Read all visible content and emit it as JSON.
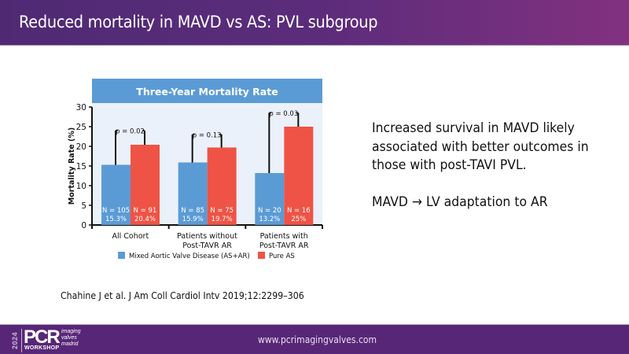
{
  "header": {
    "title": "Reduced mortality in MAVD vs AS: PVL subgroup"
  },
  "chart_data": {
    "type": "bar",
    "title": "Three-Year Mortality Rate",
    "xlabel": "",
    "ylabel": "Mortality Rate (%)",
    "ylim": [
      0,
      30
    ],
    "yticks": [
      0,
      5,
      10,
      15,
      20,
      25,
      30
    ],
    "grid": false,
    "legend_position": "bottom",
    "categories": [
      "All Cohort",
      "Patients without Post-TAVR AR",
      "Patients with Post-TAVR AR"
    ],
    "category_lines": [
      [
        "All Cohort"
      ],
      [
        "Patients without",
        "Post-TAVR AR"
      ],
      [
        "Patients with",
        "Post-TAVR AR"
      ]
    ],
    "series": [
      {
        "name": "Mixed Aortic Valve Disease (AS+AR)",
        "color": "#5b9bd5",
        "values": [
          15.3,
          15.9,
          13.2
        ],
        "n": [
          "N = 105",
          "N = 85",
          "N = 20"
        ],
        "pct_labels": [
          "15.3%",
          "15.9%",
          "13.2%"
        ],
        "error_upper": [
          24,
          23,
          28.5
        ]
      },
      {
        "name": "Pure AS",
        "color": "#ef5345",
        "values": [
          20.4,
          19.7,
          25
        ],
        "n": [
          "N = 91",
          "N = 75",
          "N = 16"
        ],
        "pct_labels": [
          "20.4%",
          "19.7%",
          "25%"
        ],
        "error_upper": [
          24,
          23,
          28.5
        ]
      }
    ],
    "p_values": [
      "p = 0.02",
      "p = 0.13",
      "p = 0.03"
    ],
    "title_bar_color": "#5b9bd5",
    "plot_bg_color": "#eaf1fa"
  },
  "side_text": {
    "line1": "Increased survival in MAVD likely",
    "line2": "associated with better outcomes in",
    "line3": "those with post-TAVI PVL.",
    "line4": "MAVD → LV adaptation to AR"
  },
  "citation": "Chahine J et al. J Am Coll Cardiol Intv 2019;12:2299–306",
  "footer": {
    "url": "www.pcrimagingvalves.com",
    "logo": {
      "year": "2024",
      "brand": "PCR",
      "workshop": "WORKSHOP",
      "sub1": "imaging",
      "sub2": "valves",
      "sub3": "madrid"
    }
  }
}
